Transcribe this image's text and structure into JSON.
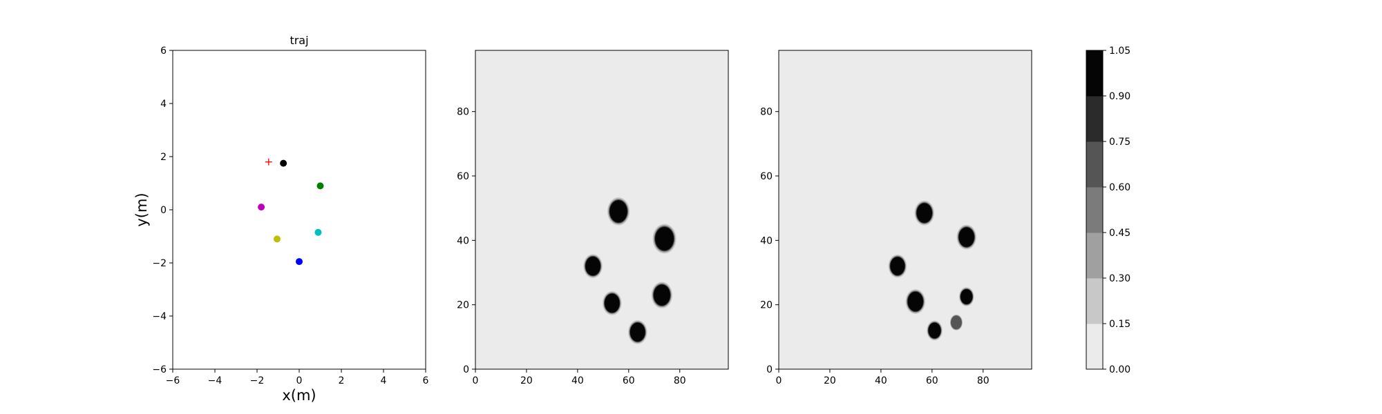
{
  "chart_data": [
    {
      "type": "scatter",
      "title": "traj",
      "xlabel": "x(m)",
      "ylabel": "y(m)",
      "xlim": [
        -6,
        6
      ],
      "ylim": [
        -6,
        6
      ],
      "xticks": [
        "−6",
        "−4",
        "−2",
        "0",
        "2",
        "4",
        "6"
      ],
      "yticks": [
        "−6",
        "−4",
        "−2",
        "0",
        "2",
        "4",
        "6"
      ],
      "grid": false,
      "points": [
        {
          "x": -0.75,
          "y": 1.75,
          "color": "#000000",
          "marker": "circle"
        },
        {
          "x": 1.0,
          "y": 0.9,
          "color": "#008000",
          "marker": "circle"
        },
        {
          "x": -1.8,
          "y": 0.1,
          "color": "#bf00bf",
          "marker": "circle"
        },
        {
          "x": 0.9,
          "y": -0.85,
          "color": "#00bfbf",
          "marker": "circle"
        },
        {
          "x": -1.05,
          "y": -1.1,
          "color": "#bfbf00",
          "marker": "circle"
        },
        {
          "x": 0.0,
          "y": -1.95,
          "color": "#0000ff",
          "marker": "circle"
        },
        {
          "x": -1.45,
          "y": 1.8,
          "color": "#ff0000",
          "marker": "plus"
        }
      ]
    },
    {
      "type": "heatmap",
      "title": "",
      "xlim": [
        0,
        99
      ],
      "ylim": [
        0,
        99
      ],
      "xticks": [
        "0",
        "20",
        "40",
        "60",
        "80"
      ],
      "yticks": [
        "0",
        "20",
        "40",
        "60",
        "80"
      ],
      "background_value": 0.0,
      "blobs": [
        {
          "cx": 56,
          "cy": 49,
          "r": 3.4,
          "value": 1.0
        },
        {
          "cx": 74,
          "cy": 40.5,
          "r": 3.6,
          "value": 1.0
        },
        {
          "cx": 46,
          "cy": 32,
          "r": 2.9,
          "value": 1.0
        },
        {
          "cx": 73,
          "cy": 23,
          "r": 3.2,
          "value": 1.0
        },
        {
          "cx": 53.5,
          "cy": 20.5,
          "r": 2.9,
          "value": 1.0
        },
        {
          "cx": 63.5,
          "cy": 11.5,
          "r": 2.9,
          "value": 1.0
        }
      ]
    },
    {
      "type": "heatmap",
      "title": "",
      "xlim": [
        0,
        99
      ],
      "ylim": [
        0,
        99
      ],
      "xticks": [
        "0",
        "20",
        "40",
        "60",
        "80"
      ],
      "yticks": [
        "0",
        "20",
        "40",
        "60",
        "80"
      ],
      "background_value": 0.0,
      "blobs": [
        {
          "cx": 57,
          "cy": 48.5,
          "r": 3.0,
          "value": 1.0
        },
        {
          "cx": 73.5,
          "cy": 41,
          "r": 3.0,
          "value": 1.0
        },
        {
          "cx": 46.5,
          "cy": 32,
          "r": 2.8,
          "value": 1.0
        },
        {
          "cx": 73.5,
          "cy": 22.5,
          "r": 2.3,
          "value": 1.0
        },
        {
          "cx": 53.5,
          "cy": 21,
          "r": 3.0,
          "value": 1.0
        },
        {
          "cx": 61,
          "cy": 12,
          "r": 2.4,
          "value": 1.0
        },
        {
          "cx": 69.5,
          "cy": 14.5,
          "r": 2.1,
          "value": 0.6
        }
      ]
    },
    {
      "type": "colorbar",
      "levels": [
        "0.00",
        "0.15",
        "0.30",
        "0.45",
        "0.60",
        "0.75",
        "0.90",
        "1.05"
      ],
      "level_values": [
        0.0,
        0.15,
        0.3,
        0.45,
        0.6,
        0.75,
        0.9,
        1.05
      ],
      "colors": [
        "#ebebeb",
        "#c8c8c8",
        "#a0a0a0",
        "#7b7b7b",
        "#555555",
        "#2b2b2b",
        "#050505"
      ]
    }
  ]
}
